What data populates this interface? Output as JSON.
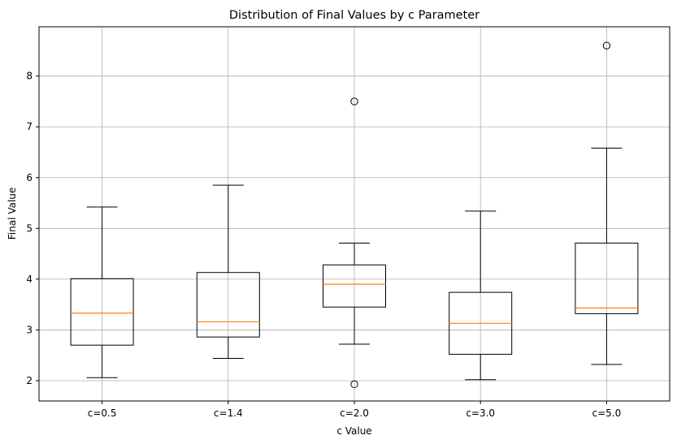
{
  "chart_data": {
    "type": "box",
    "title": "Distribution of Final Values by c Parameter",
    "xlabel": "c Value",
    "ylabel": "Final Value",
    "categories": [
      "c=0.5",
      "c=1.4",
      "c=2.0",
      "c=3.0",
      "c=5.0"
    ],
    "y_ticks": [
      "2",
      "3",
      "4",
      "5",
      "6",
      "7",
      "8"
    ],
    "ylim": [
      1.6,
      8.97
    ],
    "grid": true,
    "boxes": [
      {
        "whisker_low": 2.06,
        "q1": 2.7,
        "median": 3.33,
        "q3": 4.01,
        "whisker_high": 5.42,
        "outliers": []
      },
      {
        "whisker_low": 2.44,
        "q1": 2.86,
        "median": 3.16,
        "q3": 4.13,
        "whisker_high": 5.85,
        "outliers": []
      },
      {
        "whisker_low": 2.72,
        "q1": 3.45,
        "median": 3.9,
        "q3": 4.28,
        "whisker_high": 4.71,
        "outliers": [
          7.5,
          1.93
        ]
      },
      {
        "whisker_low": 2.02,
        "q1": 2.52,
        "median": 3.13,
        "q3": 3.74,
        "whisker_high": 5.34,
        "outliers": []
      },
      {
        "whisker_low": 2.32,
        "q1": 3.32,
        "median": 3.43,
        "q3": 4.71,
        "whisker_high": 6.58,
        "outliers": [
          8.6
        ]
      }
    ],
    "colors": {
      "box": "#000000",
      "median": "#ff7f0e",
      "grid": "#b0b0b0"
    }
  }
}
